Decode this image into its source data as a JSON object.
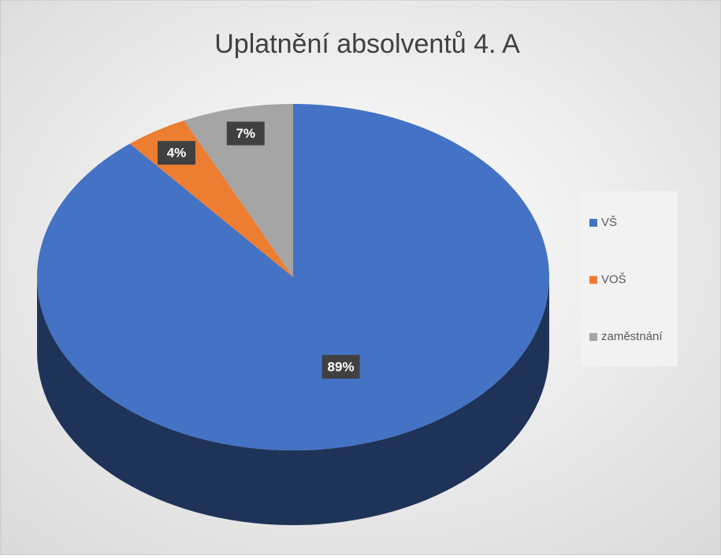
{
  "chart_data": {
    "type": "pie3d",
    "title": "Uplatnění absolventů 4. A",
    "categories": [
      "VŠ",
      "VOŠ",
      "zaměstnání"
    ],
    "values": [
      89,
      4,
      7
    ],
    "value_labels": [
      "89%",
      "4%",
      "7%"
    ],
    "colors": [
      "#4472c4",
      "#ed7d31",
      "#a5a5a5"
    ],
    "legend": "right"
  }
}
